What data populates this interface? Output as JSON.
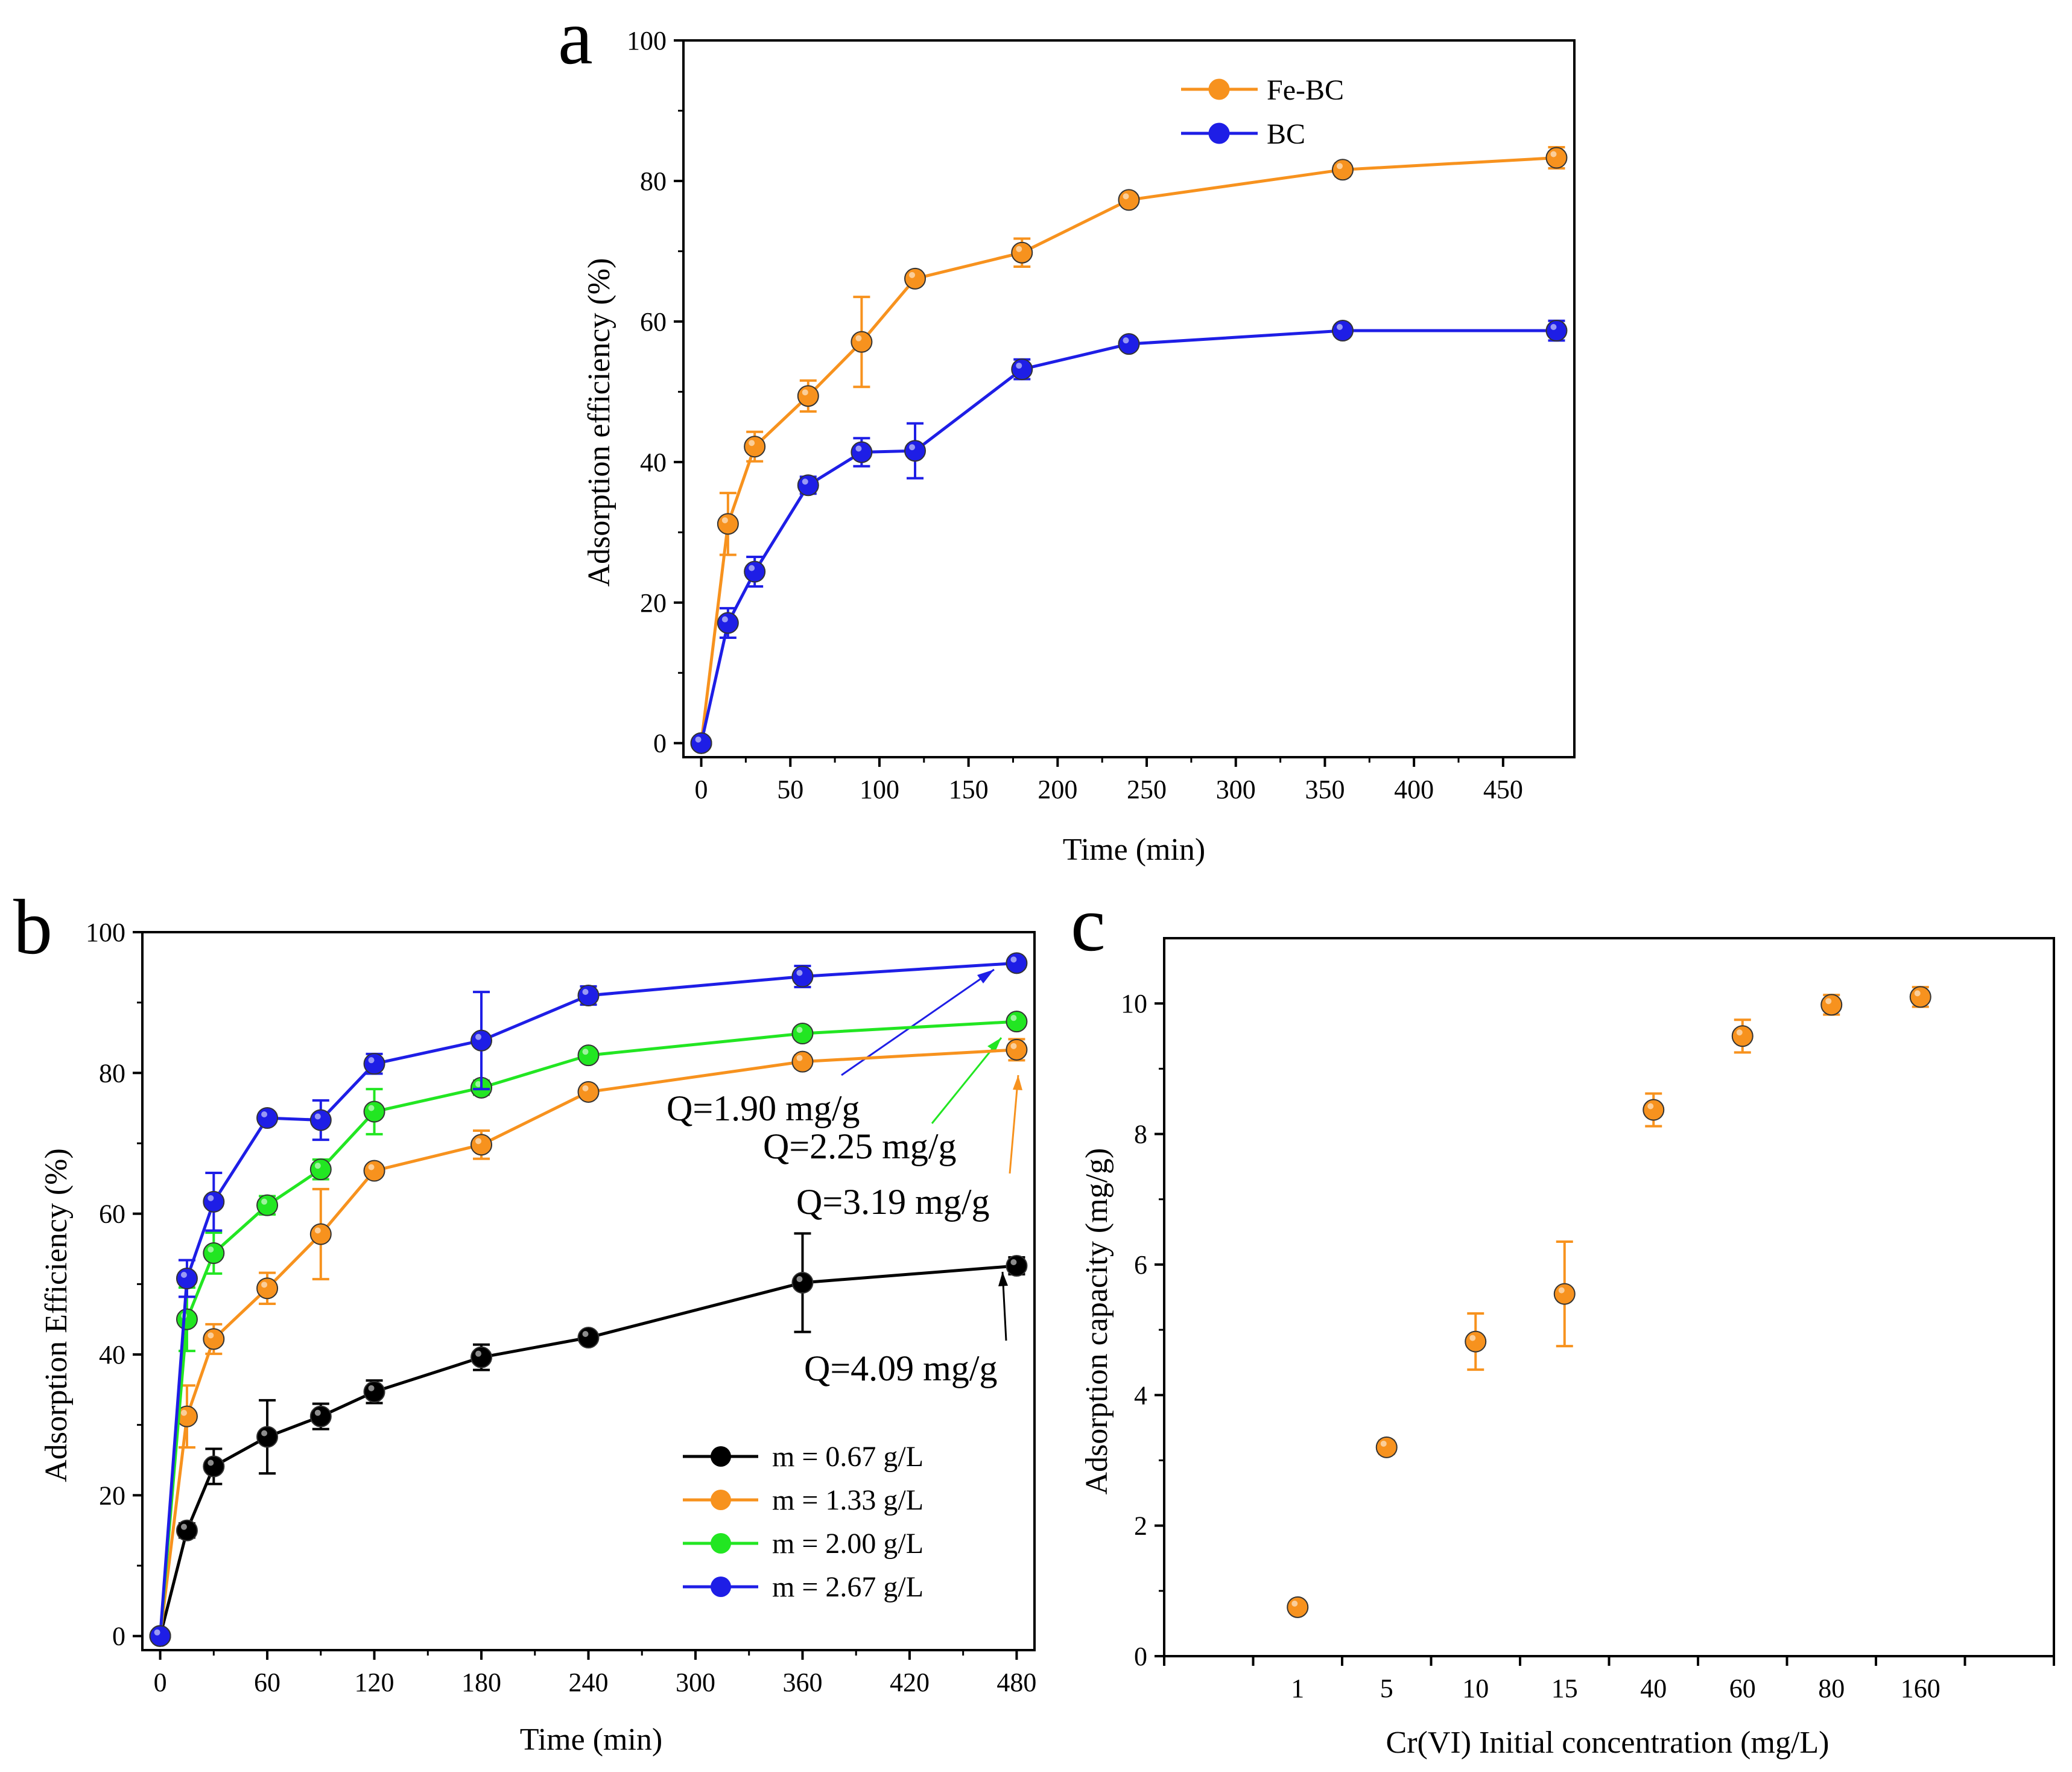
{
  "figure": {
    "title": "Cr(VI) adsorption figure with panels a, b, c"
  },
  "colors": {
    "orange": "#f7921e",
    "blue": "#1e1ee6",
    "green": "#22e622",
    "black": "#000000"
  },
  "chart_data": [
    {
      "panel": "a",
      "type": "line",
      "panel_label": "a",
      "title": "",
      "xlabel": "Time (min)",
      "ylabel": "Adsorption efficiency (%)",
      "xlim": [
        -10,
        490
      ],
      "ylim": [
        -2,
        100
      ],
      "xticks": [
        0,
        50,
        100,
        150,
        200,
        250,
        300,
        350,
        400,
        450
      ],
      "yticks": [
        0,
        20,
        40,
        60,
        80,
        100
      ],
      "legend_position": "top-center",
      "x": [
        0,
        15,
        30,
        60,
        90,
        120,
        180,
        240,
        360,
        480
      ],
      "series": [
        {
          "name": "Fe-BC",
          "color": "#f7921e",
          "values": [
            0,
            31.2,
            42.2,
            49.4,
            57.1,
            66.1,
            69.8,
            77.3,
            81.6,
            83.3
          ],
          "errors": [
            0,
            4.4,
            2.1,
            2.2,
            6.4,
            0.8,
            2.0,
            0.8,
            0.9,
            1.5
          ]
        },
        {
          "name": "BC",
          "color": "#1e1ee6",
          "values": [
            0,
            17.1,
            24.4,
            36.7,
            41.4,
            41.6,
            53.2,
            56.8,
            58.7,
            58.7
          ],
          "errors": [
            0,
            2.1,
            2.1,
            1.2,
            2.0,
            3.9,
            1.4,
            0.6,
            0.8,
            1.4
          ]
        }
      ]
    },
    {
      "panel": "b",
      "type": "line",
      "panel_label": "b",
      "title": "",
      "xlabel": "Time (min)",
      "ylabel": "Adsorption Efficiency (%)",
      "xlim": [
        -10,
        490
      ],
      "ylim": [
        -2,
        100
      ],
      "xticks": [
        0,
        60,
        120,
        180,
        240,
        300,
        360,
        420,
        480
      ],
      "yticks": [
        0,
        20,
        40,
        60,
        80,
        100
      ],
      "legend_position": "bottom-right",
      "x": [
        0,
        15,
        30,
        60,
        90,
        120,
        180,
        240,
        360,
        480
      ],
      "series": [
        {
          "name": "m = 0.67 g/L",
          "color": "#000000",
          "values": [
            0,
            15.0,
            24.1,
            28.3,
            31.2,
            34.7,
            39.6,
            42.4,
            50.2,
            52.6
          ],
          "errors": [
            0,
            1.0,
            2.5,
            5.2,
            1.8,
            1.6,
            1.8,
            0.8,
            7.0,
            1.2
          ]
        },
        {
          "name": "m = 1.33 g/L",
          "color": "#f7921e",
          "values": [
            0,
            31.2,
            42.2,
            49.4,
            57.1,
            66.1,
            69.8,
            77.3,
            81.6,
            83.3
          ],
          "errors": [
            0,
            4.4,
            2.1,
            2.2,
            6.4,
            0.8,
            2.0,
            0.8,
            0.9,
            1.5
          ]
        },
        {
          "name": "m = 2.00 g/L",
          "color": "#22e622",
          "values": [
            0,
            45.0,
            54.4,
            61.2,
            66.3,
            74.5,
            77.9,
            82.5,
            85.6,
            87.3
          ],
          "errors": [
            0,
            4.5,
            2.9,
            1.3,
            1.4,
            3.2,
            1.0,
            0.8,
            0.8,
            0.8
          ]
        },
        {
          "name": "m = 2.67 g/L",
          "color": "#1e1ee6",
          "values": [
            0,
            50.8,
            61.7,
            73.6,
            73.3,
            81.3,
            84.6,
            91.0,
            93.7,
            95.6
          ],
          "errors": [
            0,
            2.6,
            4.1,
            0.8,
            2.8,
            1.4,
            6.9,
            1.3,
            1.5,
            0.8
          ]
        }
      ],
      "annotations": [
        {
          "text": "Q=1.90 mg/g",
          "color": "#1e1ee6",
          "points_to": "m = 2.67 g/L at 480 min"
        },
        {
          "text": "Q=2.25 mg/g",
          "color": "#22e622",
          "points_to": "m = 2.00 g/L at 480 min"
        },
        {
          "text": "Q=3.19 mg/g",
          "color": "#f7921e",
          "points_to": "m = 1.33 g/L at 480 min"
        },
        {
          "text": "Q=4.09 mg/g",
          "color": "#000000",
          "points_to": "m = 0.67 g/L at 480 min"
        }
      ]
    },
    {
      "panel": "c",
      "type": "scatter",
      "panel_label": "c",
      "title": "",
      "xlabel": "Cr(VI) Initial concentration (mg/L)",
      "ylabel": "Adsorption capacity (mg/g)",
      "ylim": [
        0,
        11
      ],
      "yticks": [
        0,
        2,
        4,
        6,
        8,
        10
      ],
      "categories": [
        "1",
        "5",
        "10",
        "15",
        "40",
        "60",
        "80",
        "160"
      ],
      "category_slots_total": 10,
      "first_category_slot": 1,
      "series": [
        {
          "name": "Fe-BC",
          "color": "#f7921e",
          "values": [
            0.75,
            3.2,
            4.82,
            5.55,
            8.37,
            9.5,
            9.98,
            10.1
          ],
          "errors": [
            0.08,
            0.1,
            0.43,
            0.8,
            0.25,
            0.25,
            0.15,
            0.15
          ]
        }
      ]
    }
  ]
}
